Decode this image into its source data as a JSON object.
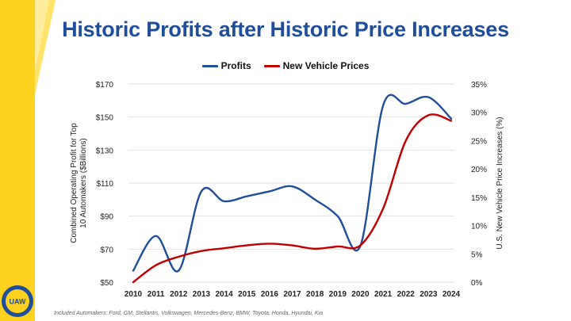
{
  "slide": {
    "title": "Historic Profits after Historic Price Increases",
    "footnote": "Included Automakers: Ford, GM, Stellantis, Volkswagen, Mercedes-Benz, BMW, Toyota, Honda, Hyundai, Kia",
    "logo_text": "UAW"
  },
  "colors": {
    "title": "#1f4e9b",
    "profits": "#1f4e9b",
    "prices": "#c00000",
    "accent_yellow": "#ffd21f"
  },
  "legend": [
    {
      "label": "Profits",
      "color": "#1f4e9b"
    },
    {
      "label": "New Vehicle Prices",
      "color": "#c00000"
    }
  ],
  "chart_data": {
    "type": "line",
    "title": "",
    "x": [
      "2010",
      "2011",
      "2012",
      "2013",
      "2014",
      "2015",
      "2016",
      "2017",
      "2018",
      "2019",
      "2020",
      "2021",
      "2022",
      "2023",
      "2024"
    ],
    "ylabel": "Combined Operating Profit for Top 10 Automakers ($Billions)",
    "y2label": "U.S. New Vehicle Price Increases (%)",
    "ylim": [
      50,
      170
    ],
    "y2lim": [
      0,
      35
    ],
    "yticks": [
      "$50",
      "$70",
      "$90",
      "$110",
      "$130",
      "$150",
      "$170"
    ],
    "y2ticks": [
      "0%",
      "5%",
      "10%",
      "15%",
      "20%",
      "25%",
      "30%",
      "35%"
    ],
    "series": [
      {
        "name": "Profits",
        "axis": "left",
        "values": [
          57,
          78,
          57,
          105,
          99,
          102,
          105,
          108,
          100,
          90,
          72,
          157,
          158,
          162,
          149
        ]
      },
      {
        "name": "New Vehicle Prices",
        "axis": "right",
        "values": [
          0,
          3,
          4.5,
          5.5,
          6,
          6.5,
          6.8,
          6.5,
          5.9,
          6.3,
          6.5,
          13,
          25,
          29.5,
          28.5
        ]
      }
    ]
  }
}
